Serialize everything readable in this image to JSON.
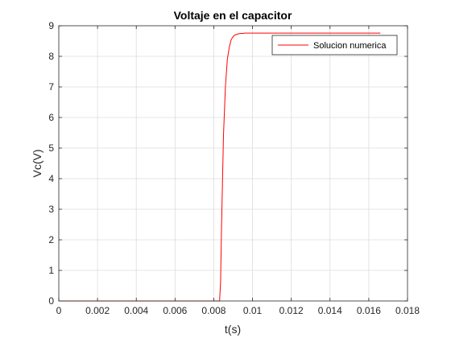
{
  "chart_data": {
    "type": "line",
    "title": "Voltaje en el capacitor",
    "xlabel": "t(s)",
    "ylabel": "Vc(V)",
    "xlim": [
      0,
      0.018
    ],
    "ylim": [
      0,
      9
    ],
    "x_ticks": [
      0,
      0.002,
      0.004,
      0.006,
      0.008,
      0.01,
      0.012,
      0.014,
      0.016,
      0.018
    ],
    "x_tick_labels": [
      "0",
      "0.002",
      "0.004",
      "0.006",
      "0.008",
      "0.01",
      "0.012",
      "0.014",
      "0.016",
      "0.018"
    ],
    "y_ticks": [
      0,
      1,
      2,
      3,
      4,
      5,
      6,
      7,
      8,
      9
    ],
    "y_tick_labels": [
      "0",
      "1",
      "2",
      "3",
      "4",
      "5",
      "6",
      "7",
      "8",
      "9"
    ],
    "grid": true,
    "legend_position": "top-right",
    "series": [
      {
        "name": "Solucion numerica",
        "color": "#ff0000",
        "x": [
          0,
          0.0083,
          0.00835,
          0.0084,
          0.0085,
          0.0086,
          0.0087,
          0.0088,
          0.0089,
          0.009,
          0.0091,
          0.0092,
          0.0093,
          0.0094,
          0.0095,
          0.0096,
          0.0098,
          0.01,
          0.0166
        ],
        "y": [
          0,
          0,
          0.6,
          2.4,
          5.4,
          7.0,
          7.9,
          8.3,
          8.55,
          8.65,
          8.7,
          8.72,
          8.74,
          8.75,
          8.75,
          8.76,
          8.76,
          8.76,
          8.76
        ]
      }
    ]
  }
}
